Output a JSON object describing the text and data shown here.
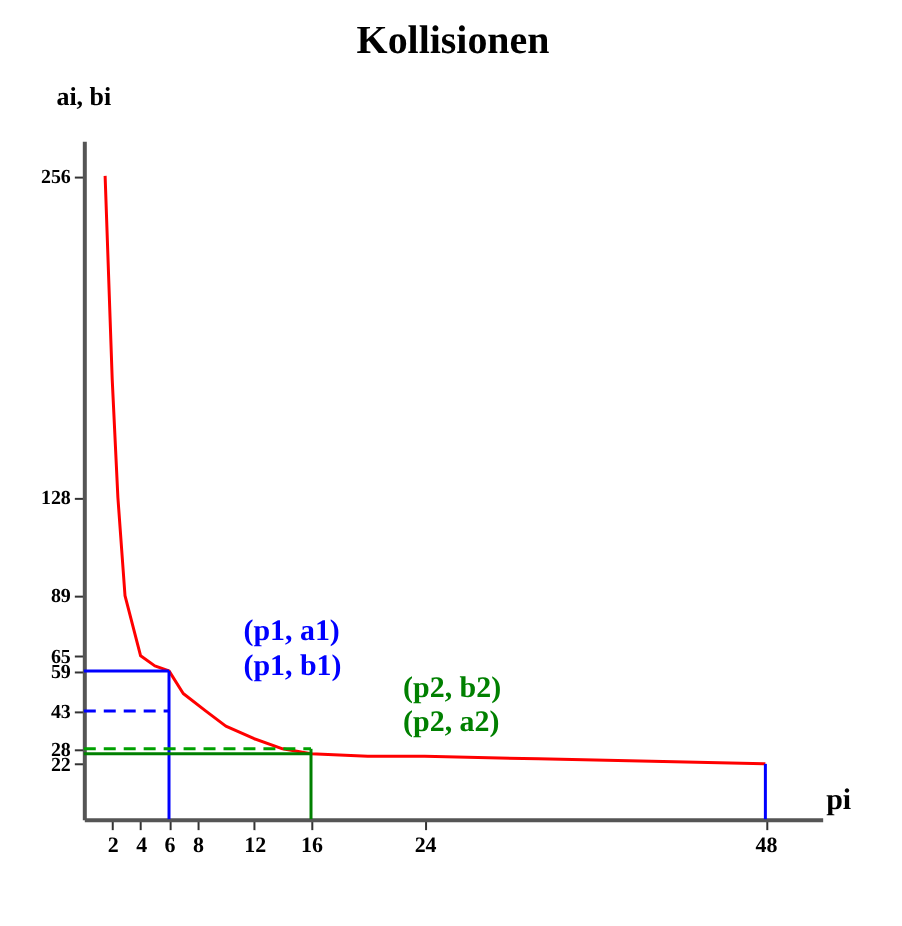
{
  "chart_data": {
    "type": "line",
    "title": "Kollisionen",
    "xlabel": "pi",
    "ylabel": "ai, bi",
    "xlim": [
      0,
      52
    ],
    "ylim": [
      0,
      270
    ],
    "xticks": [
      2,
      4,
      6,
      8,
      12,
      16,
      24,
      48
    ],
    "yticks": [
      22,
      28,
      43,
      59,
      65,
      89,
      128,
      256
    ],
    "grid": false,
    "marker": "none",
    "series": [
      {
        "color": "#ff0000",
        "line_style": "solid",
        "x": [
          1.5,
          2,
          2.4,
          2.9,
          4,
          5,
          6,
          7,
          8.6,
          10,
          12,
          14,
          16,
          20,
          24,
          32,
          40,
          48
        ],
        "values": [
          256,
          175,
          128,
          89,
          65,
          61,
          59,
          50,
          43,
          37,
          32,
          28,
          26,
          25,
          25,
          24,
          23,
          22
        ]
      },
      {
        "color": "#0000ff",
        "line_style": "solid",
        "x": [
          0,
          6
        ],
        "values": [
          59,
          59
        ]
      },
      {
        "color": "#0000ff",
        "line_style": "solid",
        "x": [
          6,
          6
        ],
        "values": [
          0,
          59
        ]
      },
      {
        "color": "#0000ff",
        "line_style": "dashed",
        "x": [
          0,
          6
        ],
        "values": [
          43,
          43
        ]
      },
      {
        "color": "#008000",
        "line_style": "solid",
        "x": [
          0,
          16
        ],
        "values": [
          26,
          26
        ]
      },
      {
        "color": "#008000",
        "line_style": "solid",
        "x": [
          16,
          16
        ],
        "values": [
          0,
          28
        ]
      },
      {
        "color": "#00a000",
        "line_style": "dashed",
        "x": [
          0,
          16
        ],
        "values": [
          28,
          28
        ]
      },
      {
        "color": "#0000ff",
        "line_style": "solid",
        "x": [
          48,
          48
        ],
        "values": [
          0,
          22
        ]
      }
    ],
    "annotations": [
      "(p1, a1)",
      "(p1, b1)",
      "(p2, b2)",
      "(p2, a2)"
    ]
  }
}
